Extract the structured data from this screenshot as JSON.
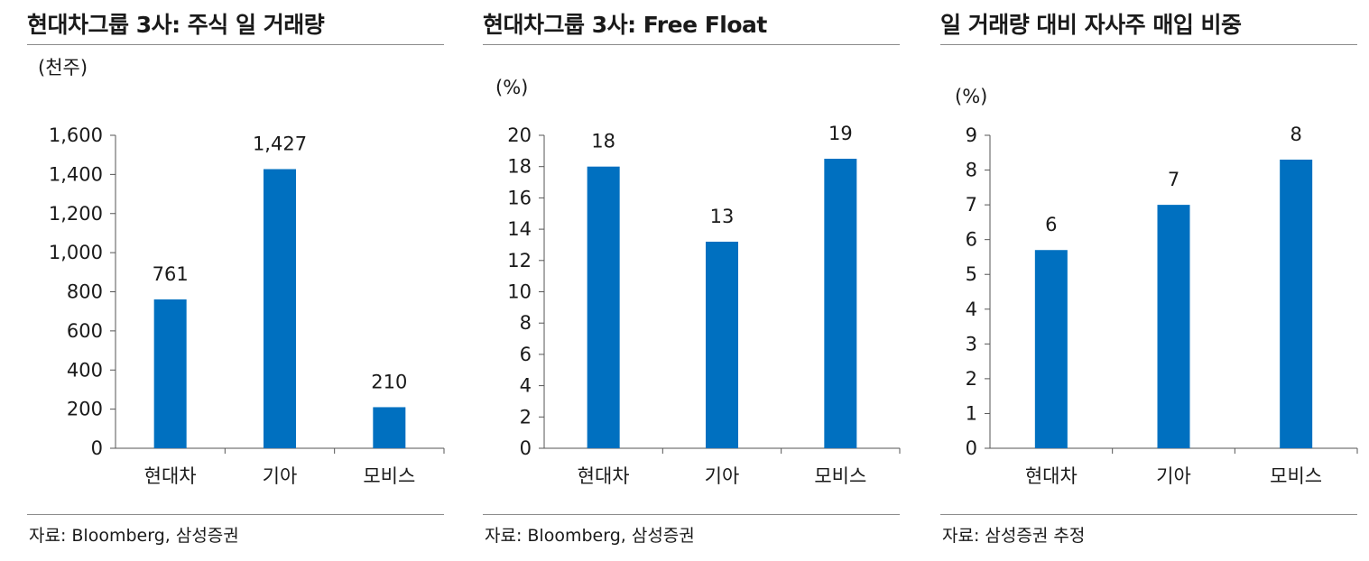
{
  "panels": [
    {
      "title": "현대차그룹 3사: 주식 일 거래량",
      "source": "자료: Bloomberg, 삼성증권",
      "chart_data": {
        "type": "bar",
        "unit_label": "(천주)",
        "categories": [
          "현대차",
          "기아",
          "모비스"
        ],
        "values": [
          761,
          1427,
          210
        ],
        "value_labels": [
          "761",
          "1,427",
          "210"
        ],
        "ylim": [
          0,
          1600
        ],
        "yticks": [
          0,
          200,
          400,
          600,
          800,
          1000,
          1200,
          1400,
          1600
        ],
        "ytick_labels": [
          "0",
          "200",
          "400",
          "600",
          "800",
          "1,000",
          "1,200",
          "1,400",
          "1,600"
        ],
        "bar_color": "#0070C0",
        "grid": false,
        "legend": "none"
      }
    },
    {
      "title": "현대차그룹 3사: Free Float",
      "source": "자료: Bloomberg, 삼성증권",
      "chart_data": {
        "type": "bar",
        "unit_label": "(%)",
        "categories": [
          "현대차",
          "기아",
          "모비스"
        ],
        "values": [
          18.0,
          13.2,
          18.5
        ],
        "value_labels": [
          "18",
          "13",
          "19"
        ],
        "ylim": [
          0,
          20
        ],
        "yticks": [
          0,
          2,
          4,
          6,
          8,
          10,
          12,
          14,
          16,
          18,
          20
        ],
        "ytick_labels": [
          "0",
          "2",
          "4",
          "6",
          "8",
          "10",
          "12",
          "14",
          "16",
          "18",
          "20"
        ],
        "bar_color": "#0070C0",
        "grid": false,
        "legend": "none"
      }
    },
    {
      "title": "일 거래량 대비 자사주 매입 비중",
      "source": "자료: 삼성증권 추정",
      "chart_data": {
        "type": "bar",
        "unit_label": "(%)",
        "categories": [
          "현대차",
          "기아",
          "모비스"
        ],
        "values": [
          5.7,
          7.0,
          8.3
        ],
        "value_labels": [
          "6",
          "7",
          "8"
        ],
        "ylim": [
          0,
          9
        ],
        "yticks": [
          0,
          1,
          2,
          3,
          4,
          5,
          6,
          7,
          8,
          9
        ],
        "ytick_labels": [
          "0",
          "1",
          "2",
          "3",
          "4",
          "5",
          "6",
          "7",
          "8",
          "9"
        ],
        "bar_color": "#0070C0",
        "grid": false,
        "legend": "none"
      }
    }
  ]
}
